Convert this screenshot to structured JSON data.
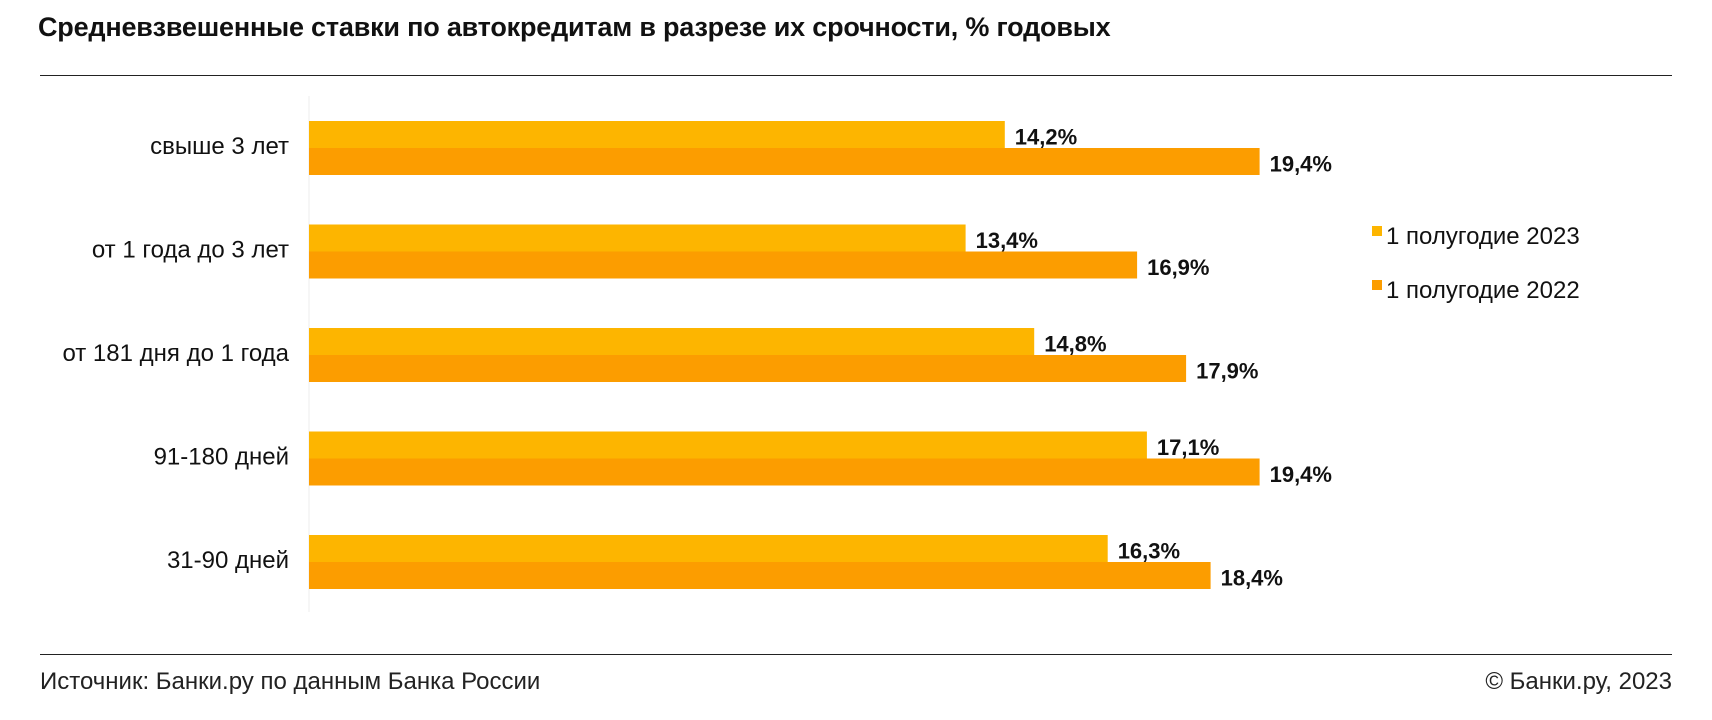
{
  "title": "Средневзвешенные ставки по автокредитам в разрезе их срочности, % годовых",
  "footer": {
    "source": "Источник: Банки.ру по данным Банка России",
    "copyright": "© Банки.ру, 2023"
  },
  "colors": {
    "series_2023": "#FDB500",
    "series_2022": "#FC9D00",
    "axis": "#eeeeee"
  },
  "chart_data": {
    "type": "bar",
    "orientation": "horizontal",
    "categories": [
      "свыше 3 лет",
      "от 1 года до 3 лет",
      "от 181 дня до 1 года",
      "91-180 дней",
      "31-90 дней"
    ],
    "series": [
      {
        "name": "1 полугодие 2023",
        "values": [
          14.2,
          13.4,
          14.8,
          17.1,
          16.3
        ],
        "labels": [
          "14,2%",
          "13,4%",
          "14,8%",
          "17,1%",
          "16,3%"
        ]
      },
      {
        "name": "1 полугодие 2022",
        "values": [
          19.4,
          16.9,
          17.9,
          19.4,
          18.4
        ],
        "labels": [
          "19,4%",
          "16,9%",
          "17,9%",
          "19,4%",
          "18,4%"
        ]
      }
    ],
    "xlim": [
      0,
      28
    ],
    "legend": "right",
    "grid": false
  }
}
